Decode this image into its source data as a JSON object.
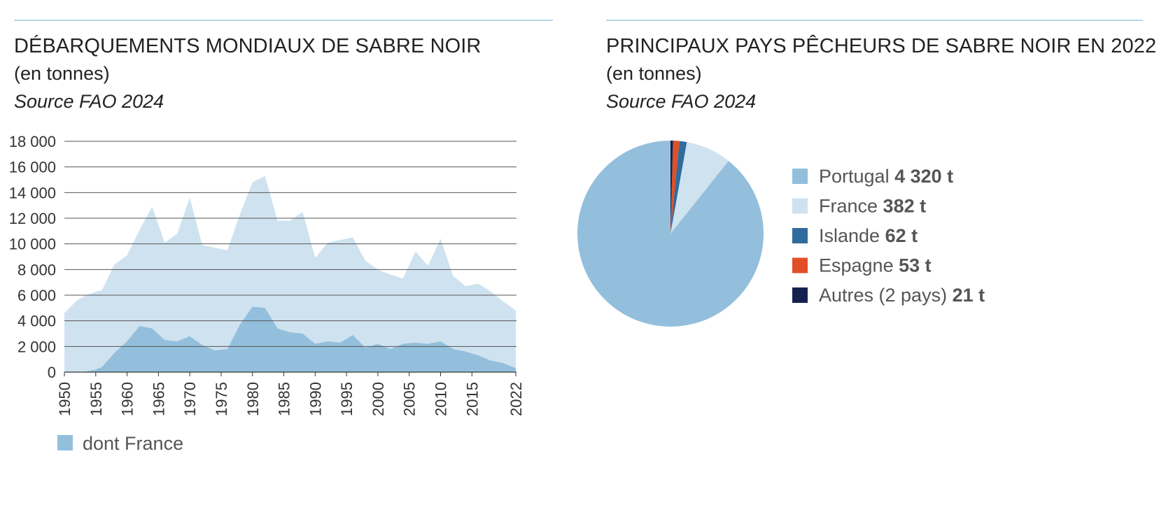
{
  "colors": {
    "total": "#cfe2ef",
    "france": "#93bfdd",
    "portugal": "#93bfdd",
    "france_pie": "#cfe2ef",
    "islande": "#2f6b9c",
    "espagne": "#e04f27",
    "autres": "#15224f",
    "grid": "#555555",
    "topline": "#b8d7e4"
  },
  "left": {
    "title": "DÉBARQUEMENTS MONDIAUX DE SABRE NOIR",
    "subtitle": "(en tonnes)",
    "source": "Source FAO 2024"
  },
  "right": {
    "title": "PRINCIPAUX PAYS PÊCHEURS DE SABRE NOIR EN 2022",
    "subtitle": "(en tonnes)",
    "source": "Source FAO 2024"
  },
  "chart_data": [
    {
      "type": "area",
      "title": "DÉBARQUEMENTS MONDIAUX DE SABRE NOIR",
      "ylim": [
        0,
        18000
      ],
      "xlim": [
        1950,
        2022
      ],
      "yticks": [
        0,
        2000,
        4000,
        6000,
        8000,
        10000,
        12000,
        14000,
        16000,
        18000
      ],
      "ytick_labels": [
        "0",
        "2 000",
        "4 000",
        "6 000",
        "8 000",
        "10 000",
        "12 000",
        "14 000",
        "16 000",
        "18 000"
      ],
      "xticks": [
        1950,
        1955,
        1960,
        1965,
        1970,
        1975,
        1980,
        1985,
        1990,
        1995,
        2000,
        2005,
        2010,
        2015,
        2022
      ],
      "xtick_labels": [
        "1950",
        "1955",
        "1960",
        "1965",
        "1970",
        "1975",
        "1980",
        "1985",
        "1990",
        "1995",
        "2000",
        "2005",
        "2010",
        "2015",
        "2022"
      ],
      "grid": true,
      "series": [
        {
          "values": [
            [
              1950,
              4600
            ],
            [
              1952,
              5600
            ],
            [
              1954,
              6100
            ],
            [
              1956,
              6400
            ],
            [
              1958,
              8400
            ],
            [
              1960,
              9100
            ],
            [
              1962,
              11100
            ],
            [
              1964,
              12900
            ],
            [
              1966,
              10100
            ],
            [
              1968,
              10800
            ],
            [
              1970,
              13600
            ],
            [
              1972,
              9900
            ],
            [
              1974,
              9700
            ],
            [
              1976,
              9500
            ],
            [
              1978,
              12300
            ],
            [
              1980,
              14800
            ],
            [
              1982,
              15300
            ],
            [
              1984,
              11800
            ],
            [
              1986,
              11800
            ],
            [
              1988,
              12500
            ],
            [
              1990,
              8900
            ],
            [
              1992,
              10100
            ],
            [
              1994,
              10300
            ],
            [
              1996,
              10500
            ],
            [
              1998,
              8700
            ],
            [
              2000,
              8000
            ],
            [
              2002,
              7600
            ],
            [
              2004,
              7300
            ],
            [
              2006,
              9400
            ],
            [
              2008,
              8300
            ],
            [
              2010,
              10400
            ],
            [
              2012,
              7500
            ],
            [
              2014,
              6700
            ],
            [
              2016,
              6900
            ],
            [
              2018,
              6300
            ],
            [
              2020,
              5500
            ],
            [
              2022,
              4800
            ]
          ]
        },
        {
          "name": "dont France",
          "values": [
            [
              1950,
              0
            ],
            [
              1953,
              0
            ],
            [
              1955,
              200
            ],
            [
              1956,
              400
            ],
            [
              1958,
              1500
            ],
            [
              1960,
              2400
            ],
            [
              1962,
              3600
            ],
            [
              1964,
              3400
            ],
            [
              1966,
              2500
            ],
            [
              1968,
              2400
            ],
            [
              1970,
              2800
            ],
            [
              1972,
              2100
            ],
            [
              1974,
              1700
            ],
            [
              1976,
              1800
            ],
            [
              1978,
              3700
            ],
            [
              1980,
              5100
            ],
            [
              1982,
              5000
            ],
            [
              1984,
              3400
            ],
            [
              1986,
              3100
            ],
            [
              1988,
              3000
            ],
            [
              1990,
              2200
            ],
            [
              1992,
              2400
            ],
            [
              1994,
              2300
            ],
            [
              1996,
              2900
            ],
            [
              1998,
              1900
            ],
            [
              2000,
              2200
            ],
            [
              2002,
              1800
            ],
            [
              2004,
              2200
            ],
            [
              2006,
              2300
            ],
            [
              2008,
              2200
            ],
            [
              2010,
              2400
            ],
            [
              2012,
              1800
            ],
            [
              2014,
              1600
            ],
            [
              2016,
              1300
            ],
            [
              2018,
              900
            ],
            [
              2020,
              700
            ],
            [
              2022,
              300
            ]
          ]
        }
      ],
      "legend": [
        {
          "label": "dont France"
        }
      ],
      "legend_position": "bottom-left"
    },
    {
      "type": "pie",
      "title": "PRINCIPAUX PAYS PÊCHEURS DE SABRE NOIR EN 2022",
      "slices": [
        {
          "name": "Portugal",
          "value": 4320,
          "value_label": "4 320 t",
          "color_key": "portugal"
        },
        {
          "name": "France",
          "value": 382,
          "value_label": "382 t",
          "color_key": "france_pie"
        },
        {
          "name": "Islande",
          "value": 62,
          "value_label": "62 t",
          "color_key": "islande"
        },
        {
          "name": "Espagne",
          "value": 53,
          "value_label": "53 t",
          "color_key": "espagne"
        },
        {
          "name": "Autres (2 pays)",
          "value": 21,
          "value_label": "21 t",
          "color_key": "autres"
        }
      ],
      "legend_position": "right"
    }
  ]
}
